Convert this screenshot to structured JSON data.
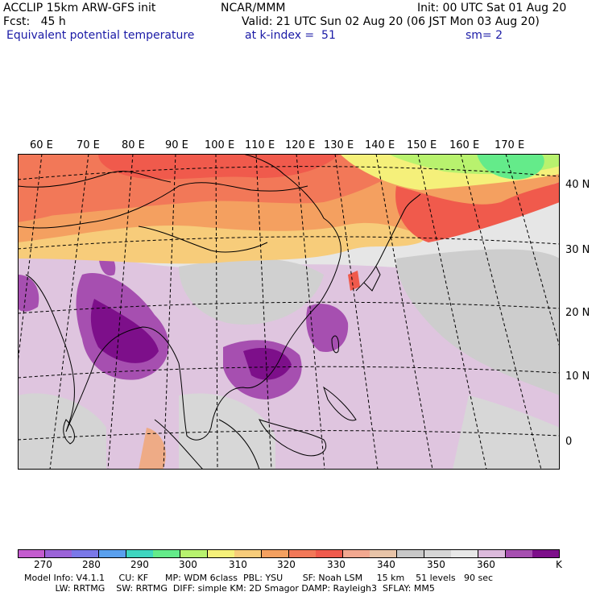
{
  "header": {
    "line1_left": "ACCLIP 15km ARW-GFS init",
    "line1_center": "NCAR/MMM",
    "line1_right": "Init: 00 UTC Sat 01 Aug 20",
    "line2_left": "Fcst:   45 h",
    "line2_right": "Valid: 21 UTC Sun 02 Aug 20 (06 JST Mon 03 Aug 20)",
    "line3_left": "Equivalent potential temperature",
    "line3_center": "at k-index =  51",
    "line3_right": "sm= 2"
  },
  "map": {
    "lon_labels": [
      "60 E",
      "70 E",
      "80 E",
      "90 E",
      "100 E",
      "110 E",
      "120 E",
      "130 E",
      "140 E",
      "150 E",
      "160 E",
      "170 E"
    ],
    "lat_labels": [
      "40 N",
      "30 N",
      "20 N",
      "10 N",
      "0"
    ]
  },
  "colorbar": {
    "unit": "K",
    "labels": [
      "270",
      "280",
      "290",
      "300",
      "310",
      "320",
      "330",
      "340",
      "350",
      "360"
    ],
    "colors": [
      "#c45ccf",
      "#9b63d8",
      "#7a78e8",
      "#5aa0ee",
      "#3fd6c0",
      "#64eb8a",
      "#b8f26e",
      "#f5f07a",
      "#f7cc7a",
      "#f4a060",
      "#f27858",
      "#f05a4c",
      "#f2a890",
      "#e8c4a8",
      "#c8c8c8",
      "#d6d6d6",
      "#e8e8e8",
      "#dcbadc",
      "#a64fb0",
      "#7d0f8a"
    ]
  },
  "footer": {
    "line1": "Model Info: V4.1.1     CU: KF      MP: WDM 6class  PBL: YSU       SF: Noah LSM     15 km    51 levels   90 sec",
    "line2": "           LW: RRTMG    SW: RRTMG  DIFF: simple KM: 2D Smagor DAMP: Rayleigh3  SFLAY: MM5"
  }
}
